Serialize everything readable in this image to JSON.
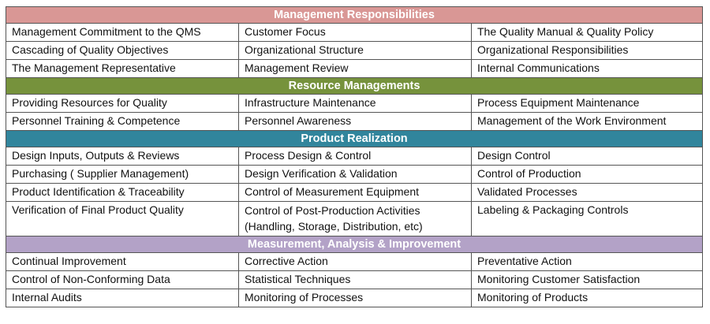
{
  "colors": {
    "management": "#d99795",
    "resource": "#76923c",
    "product": "#31859c",
    "measurement": "#b3a2c7"
  },
  "sections": [
    {
      "title": "Management Responsibilities",
      "rows": [
        [
          "Management Commitment to the QMS",
          "Customer Focus",
          "The Quality Manual & Quality Policy"
        ],
        [
          "Cascading of Quality Objectives",
          "Organizational Structure",
          "Organizational Responsibilities"
        ],
        [
          "The Management Representative",
          "Management Review",
          "Internal Communications"
        ]
      ]
    },
    {
      "title": "Resource Managements",
      "rows": [
        [
          "Providing Resources for Quality",
          "Infrastructure Maintenance",
          "Process Equipment Maintenance"
        ],
        [
          "Personnel Training & Competence",
          "Personnel Awareness",
          "Management of the Work Environment"
        ]
      ]
    },
    {
      "title": "Product Realization",
      "rows": [
        [
          "Design Inputs, Outputs & Reviews",
          "Process Design & Control",
          "Design Control"
        ],
        [
          "Purchasing ( Supplier Management)",
          "Design Verification & Validation",
          "Control of Production"
        ],
        [
          "Product Identification & Traceability",
          "Control of Measurement Equipment",
          "Validated Processes"
        ],
        [
          "Verification of Final Product Quality",
          "Control of Post-Production Activities (Handling, Storage, Distribution, etc)",
          "Labeling & Packaging Controls"
        ]
      ]
    },
    {
      "title": "Measurement, Analysis & Improvement",
      "rows": [
        [
          "Continual Improvement",
          "Corrective Action",
          "Preventative Action"
        ],
        [
          "Control of Non-Conforming Data",
          "Statistical Techniques",
          "Monitoring Customer Satisfaction"
        ],
        [
          "Internal Audits",
          "Monitoring of Processes",
          "Monitoring of Products"
        ]
      ]
    }
  ]
}
